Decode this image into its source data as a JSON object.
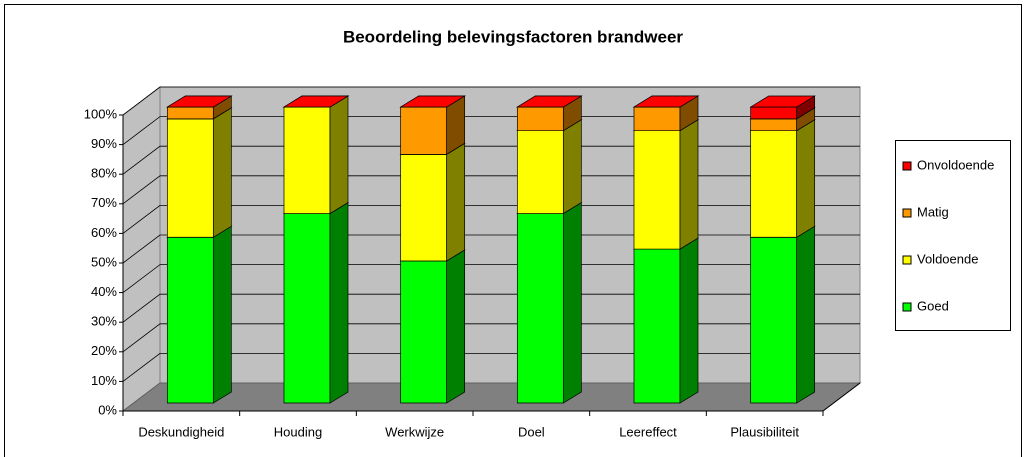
{
  "chart_data": {
    "type": "bar3d_stacked",
    "title": "Beoordeling belevingsfactoren brandweer",
    "categories": [
      "Deskundigheid",
      "Houding",
      "Werkwijze",
      "Doel",
      "Leereffect",
      "Plausibiliteit"
    ],
    "series": [
      {
        "name": "Goed",
        "color": "#00ff00",
        "side": "#008000",
        "values": [
          56,
          64,
          48,
          64,
          52,
          56
        ]
      },
      {
        "name": "Voldoende",
        "color": "#ffff00",
        "side": "#808000",
        "values": [
          40,
          36,
          36,
          28,
          40,
          36
        ]
      },
      {
        "name": "Matig",
        "color": "#ff9900",
        "side": "#804d00",
        "values": [
          4,
          0,
          16,
          8,
          8,
          4
        ]
      },
      {
        "name": "Onvoldoende",
        "color": "#ff0000",
        "side": "#800000",
        "values": [
          0,
          0,
          0,
          0,
          0,
          4
        ]
      }
    ],
    "ylim": [
      0,
      100
    ],
    "yticks": [
      {
        "value": 0,
        "label": "0%"
      },
      {
        "value": 10,
        "label": "10%"
      },
      {
        "value": 20,
        "label": "20%"
      },
      {
        "value": 30,
        "label": "30%"
      },
      {
        "value": 40,
        "label": "40%"
      },
      {
        "value": 50,
        "label": "50%"
      },
      {
        "value": 60,
        "label": "60%"
      },
      {
        "value": 70,
        "label": "70%"
      },
      {
        "value": 80,
        "label": "80%"
      },
      {
        "value": 90,
        "label": "90%"
      },
      {
        "value": 100,
        "label": "100%"
      }
    ],
    "grid": true,
    "legend": "right"
  }
}
